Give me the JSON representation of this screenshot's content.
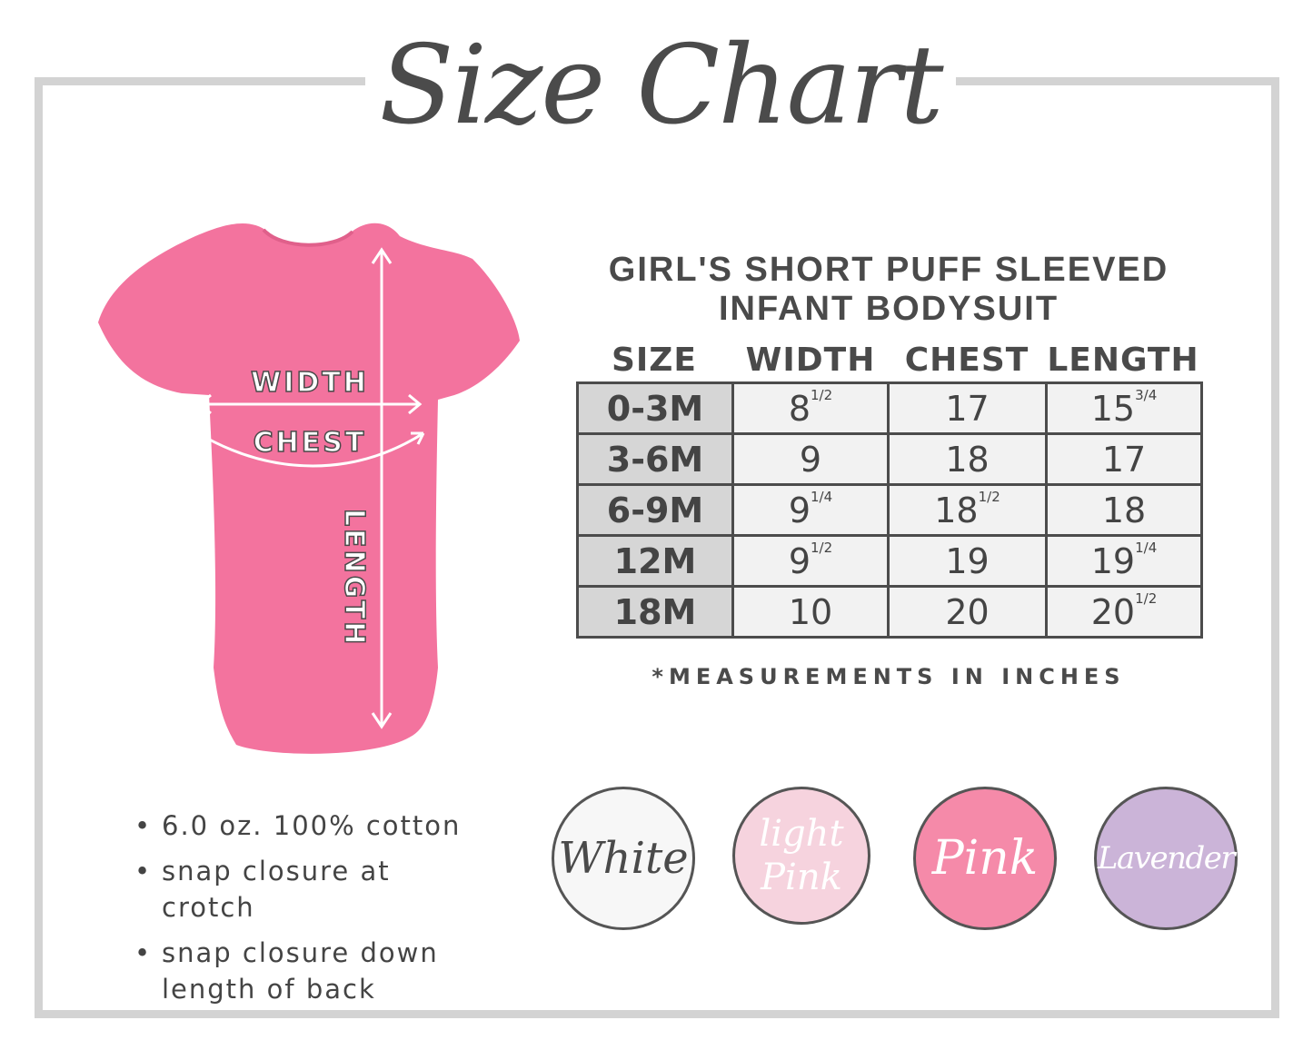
{
  "title": "Size Chart",
  "product_name": "GIRL'S SHORT PUFF SLEEVED INFANT BODYSUIT",
  "diagram_labels": {
    "width": "WIDTH",
    "chest": "CHEST",
    "length": "LENGTH"
  },
  "table": {
    "headers": [
      "SIZE",
      "WIDTH",
      "CHEST",
      "LENGTH"
    ],
    "rows": [
      {
        "size": "0-3M",
        "width": "8",
        "width_frac": "1/2",
        "chest": "17",
        "chest_frac": "",
        "length": "15",
        "length_frac": "3/4"
      },
      {
        "size": "3-6M",
        "width": "9",
        "width_frac": "",
        "chest": "18",
        "chest_frac": "",
        "length": "17",
        "length_frac": ""
      },
      {
        "size": "6-9M",
        "width": "9",
        "width_frac": "1/4",
        "chest": "18",
        "chest_frac": "1/2",
        "length": "18",
        "length_frac": ""
      },
      {
        "size": "12M",
        "width": "9",
        "width_frac": "1/2",
        "chest": "19",
        "chest_frac": "",
        "length": "19",
        "length_frac": "1/4"
      },
      {
        "size": "18M",
        "width": "10",
        "width_frac": "",
        "chest": "20",
        "chest_frac": "",
        "length": "20",
        "length_frac": "1/2"
      }
    ]
  },
  "note": "*MEASUREMENTS IN INCHES",
  "features": [
    "6.0 oz. 100% cotton",
    "snap closure at crotch",
    "snap closure down length of back"
  ],
  "colors": [
    {
      "name": "White",
      "hex": "#f7f7f7",
      "text": "#4a4a4a"
    },
    {
      "name": "light Pink",
      "hex": "#f6d3de",
      "text": "#ffffff"
    },
    {
      "name": "Pink",
      "hex": "#f58aa9",
      "text": "#ffffff"
    },
    {
      "name": "Lavender",
      "hex": "#cbb4d8",
      "text": "#ffffff"
    }
  ],
  "bodysuit_color": "#f3739e",
  "frame_color": "#d3d3d3"
}
